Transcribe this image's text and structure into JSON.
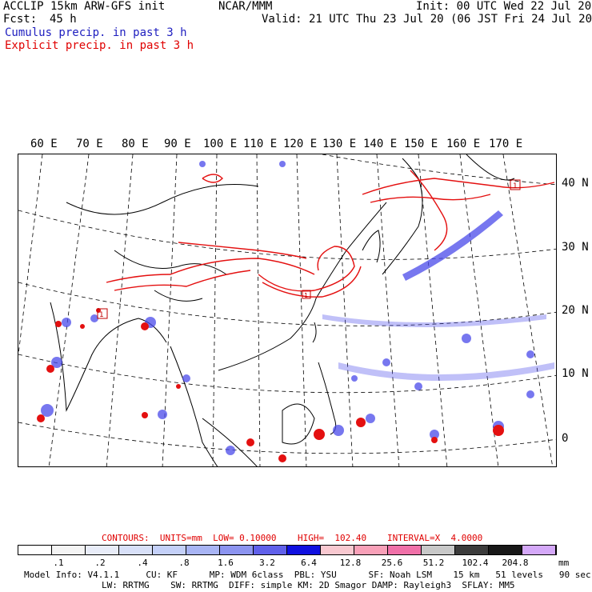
{
  "header": {
    "title": "ACCLIP 15km ARW-GFS init",
    "fcst_label": "Fcst:",
    "fcst_value": "45 h",
    "center": "NCAR/MMM",
    "init": "Init: 00 UTC Wed 22 Jul 20",
    "valid": "Valid: 21 UTC Thu 23 Jul 20 (06 JST Fri 24 Jul 20)",
    "legend_cumulus": "Cumulus precip. in past 3 h",
    "legend_explicit": "Explicit precip. in past 3 h"
  },
  "map": {
    "lon_labels": [
      "60 E",
      "70 E",
      "80 E",
      "90 E",
      "100 E",
      "110 E",
      "120 E",
      "130 E",
      "140 E",
      "150 E",
      "160 E",
      "170 E"
    ],
    "lat_labels": [
      "40 N",
      "30 N",
      "20 N",
      "10 N",
      "0"
    ],
    "colors": {
      "cumulus": "#3a3ae8",
      "explicit": "#e41010",
      "border": "#000000",
      "grid": "#000000"
    },
    "station_markers": [
      "1",
      "1",
      "1"
    ]
  },
  "contours_line": {
    "prefix": "CONTOURS:  UNITS=mm  LOW= 0.10000",
    "high": "HIGH=  102.40",
    "interval": "INTERVAL=X  4.0000"
  },
  "colorbar": {
    "colors": [
      "#ffffff",
      "#f4f4f4",
      "#e8ecf8",
      "#d8e0f8",
      "#c4d0f8",
      "#a8b4f4",
      "#8c94f0",
      "#6060ea",
      "#1010e0",
      "#f8c8d0",
      "#f8a0b8",
      "#f070a8",
      "#c8c8c8",
      "#3c3c3c",
      "#181818",
      "#d4a8f8"
    ],
    "labels": [
      ".1",
      ".2",
      ".4",
      ".8",
      "1.6",
      "3.2",
      "6.4",
      "12.8",
      "25.6",
      "51.2",
      "102.4",
      "204.8"
    ],
    "unit": "mm"
  },
  "footer": {
    "line1": "Model Info: V4.1.1     CU: KF      MP: WDM 6class  PBL: YSU      SF: Noah LSM    15 km   51 levels   90 sec",
    "line2": "LW: RRTMG    SW: RRTMG  DIFF: simple KM: 2D Smagor DAMP: Rayleigh3  SFLAY: MM5"
  }
}
